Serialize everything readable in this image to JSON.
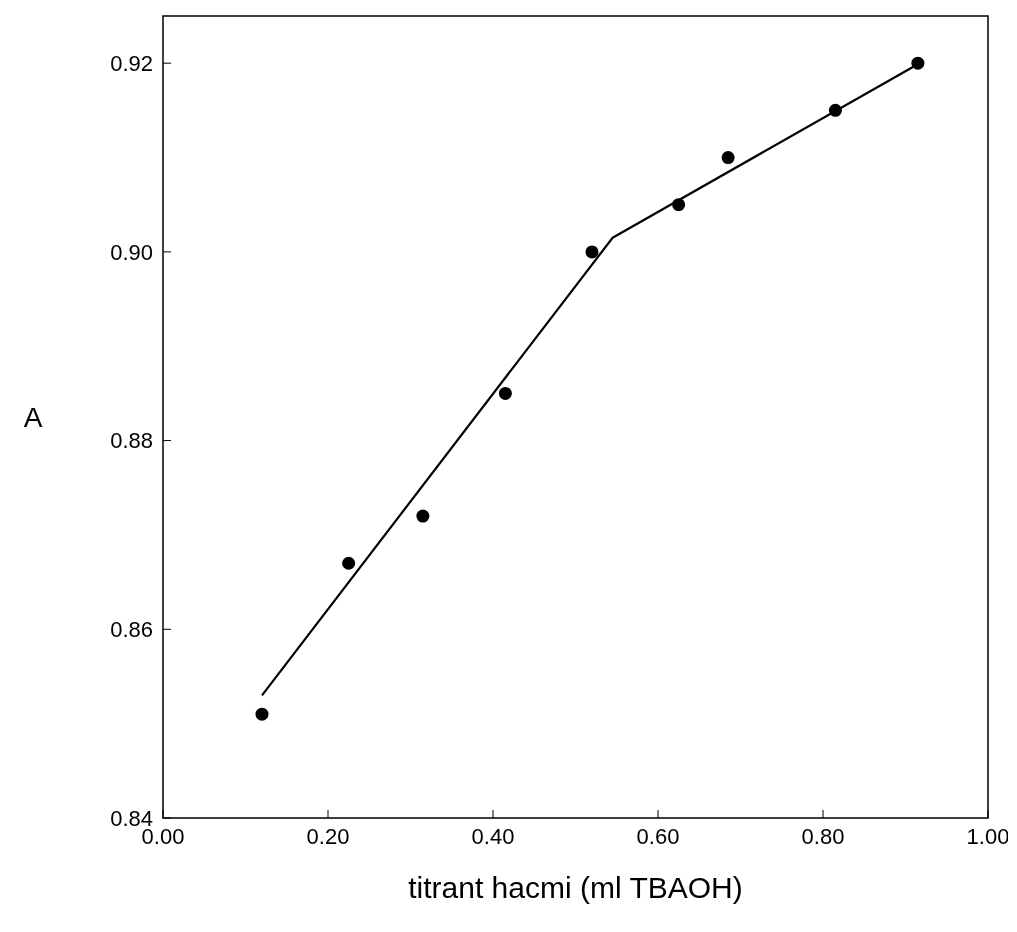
{
  "chart_data": {
    "type": "scatter",
    "xlabel": "titrant hacmi (ml TBAOH)",
    "ylabel": "A",
    "xlim": [
      0,
      1
    ],
    "xticks": [
      {
        "value": 0,
        "label": "0.00"
      },
      {
        "value": 0.2,
        "label": "0.20"
      },
      {
        "value": 0.4,
        "label": "0.40"
      },
      {
        "value": 0.6,
        "label": "0.60"
      },
      {
        "value": 0.8,
        "label": "0.80"
      },
      {
        "value": 1,
        "label": "1.00"
      }
    ],
    "ylim": [
      0.84,
      0.925
    ],
    "yticks": [
      0.84,
      0.86,
      0.88,
      {
        "value": 0.9,
        "label": "0.90"
      },
      0.92
    ],
    "grid": false,
    "marker": "circle",
    "series": [
      {
        "color": "#000000",
        "x": [
          0.12,
          0.225,
          0.315,
          0.415,
          0.52,
          0.625,
          0.685,
          0.815,
          0.915
        ],
        "values": [
          0.851,
          0.867,
          0.872,
          0.885,
          0.9,
          0.905,
          0.91,
          0.915,
          0.92
        ]
      },
      {
        "type": "line",
        "color": "#000000",
        "marker": "none",
        "line_style": "solid",
        "x": [
          0.12,
          0.545,
          0.917
        ],
        "values": [
          0.853,
          0.9015,
          0.92
        ]
      }
    ]
  }
}
